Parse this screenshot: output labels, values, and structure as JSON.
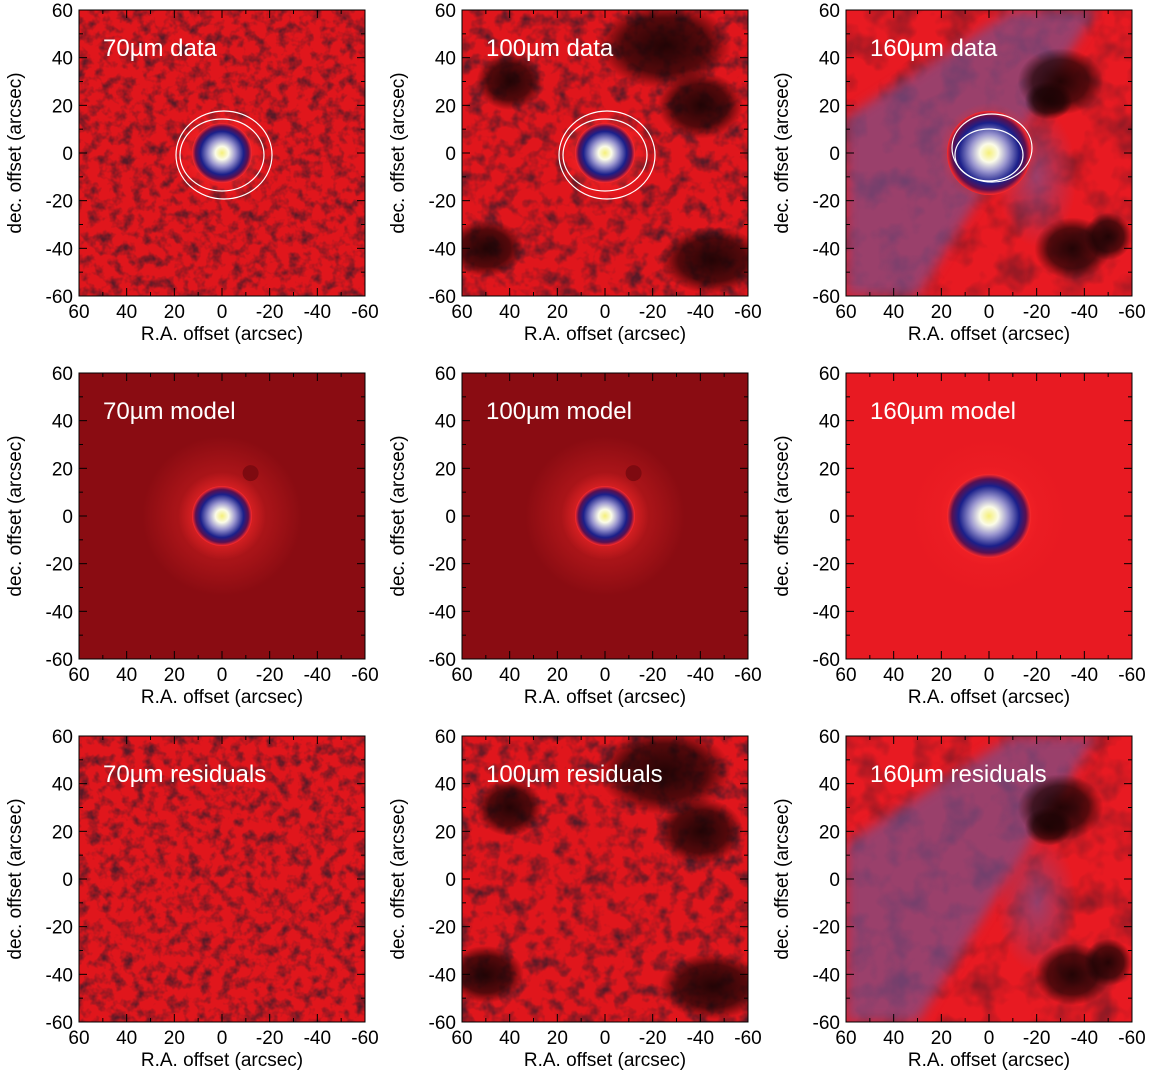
{
  "colors": {
    "background_dark": "#8a0c12",
    "background_mid": "#e0161c",
    "halo_red": "#ff2a2a",
    "core_blue": "#1a1f8a",
    "core_lavender": "#9a96cf",
    "core_yellow": "#f5f07a",
    "dust_dark": "#1a0304",
    "contour": "#ffffff",
    "label_text": "#ffffff"
  },
  "chart_data": [
    {
      "type": "heatmap",
      "title": "70µm data",
      "xlabel": "R.A. offset (arcsec)",
      "ylabel": "dec. offset (arcsec)",
      "xlim": [
        60,
        -60
      ],
      "ylim": [
        -60,
        60
      ],
      "xticks": [
        "60",
        "40",
        "20",
        "0",
        "-20",
        "-40",
        "-60"
      ],
      "yticks": [
        "60",
        "40",
        "20",
        "0",
        "-20",
        "-40",
        "-60"
      ],
      "source_peak_offset": [
        0,
        0
      ],
      "contours": true,
      "style": "data"
    },
    {
      "type": "heatmap",
      "title": "100µm data",
      "xlabel": "R.A. offset (arcsec)",
      "ylabel": "dec. offset (arcsec)",
      "xlim": [
        60,
        -60
      ],
      "ylim": [
        -60,
        60
      ],
      "xticks": [
        "60",
        "40",
        "20",
        "0",
        "-20",
        "-40",
        "-60"
      ],
      "yticks": [
        "60",
        "40",
        "20",
        "0",
        "-20",
        "-40",
        "-60"
      ],
      "source_peak_offset": [
        0,
        0
      ],
      "contours": true,
      "style": "data"
    },
    {
      "type": "heatmap",
      "title": "160µm data",
      "xlabel": "R.A. offset (arcsec)",
      "ylabel": "dec. offset (arcsec)",
      "xlim": [
        60,
        -60
      ],
      "ylim": [
        -60,
        60
      ],
      "xticks": [
        "60",
        "40",
        "20",
        "0",
        "-20",
        "-40",
        "-60"
      ],
      "yticks": [
        "60",
        "40",
        "20",
        "0",
        "-20",
        "-40",
        "-60"
      ],
      "source_peak_offset": [
        0,
        0
      ],
      "contours": true,
      "style": "data160"
    },
    {
      "type": "heatmap",
      "title": "70µm model",
      "xlabel": "R.A. offset (arcsec)",
      "ylabel": "dec. offset (arcsec)",
      "xlim": [
        60,
        -60
      ],
      "ylim": [
        -60,
        60
      ],
      "xticks": [
        "60",
        "40",
        "20",
        "0",
        "-20",
        "-40",
        "-60"
      ],
      "yticks": [
        "60",
        "40",
        "20",
        "0",
        "-20",
        "-40",
        "-60"
      ],
      "source_peak_offset": [
        0,
        0
      ],
      "contours": false,
      "style": "model"
    },
    {
      "type": "heatmap",
      "title": "100µm model",
      "xlabel": "R.A. offset (arcsec)",
      "ylabel": "dec. offset (arcsec)",
      "xlim": [
        60,
        -60
      ],
      "ylim": [
        -60,
        60
      ],
      "xticks": [
        "60",
        "40",
        "20",
        "0",
        "-20",
        "-40",
        "-60"
      ],
      "yticks": [
        "60",
        "40",
        "20",
        "0",
        "-20",
        "-40",
        "-60"
      ],
      "source_peak_offset": [
        0,
        0
      ],
      "contours": false,
      "style": "model"
    },
    {
      "type": "heatmap",
      "title": "160µm model",
      "xlabel": "R.A. offset (arcsec)",
      "ylabel": "dec. offset (arcsec)",
      "xlim": [
        60,
        -60
      ],
      "ylim": [
        -60,
        60
      ],
      "xticks": [
        "60",
        "40",
        "20",
        "0",
        "-20",
        "-40",
        "-60"
      ],
      "yticks": [
        "60",
        "40",
        "20",
        "0",
        "-20",
        "-40",
        "-60"
      ],
      "source_peak_offset": [
        0,
        0
      ],
      "contours": false,
      "style": "model160"
    },
    {
      "type": "heatmap",
      "title": "70µm residuals",
      "xlabel": "R.A. offset (arcsec)",
      "ylabel": "dec. offset (arcsec)",
      "xlim": [
        60,
        -60
      ],
      "ylim": [
        -60,
        60
      ],
      "xticks": [
        "60",
        "40",
        "20",
        "0",
        "-20",
        "-40",
        "-60"
      ],
      "yticks": [
        "60",
        "40",
        "20",
        "0",
        "-20",
        "-40",
        "-60"
      ],
      "source_peak_offset": null,
      "contours": false,
      "style": "residual"
    },
    {
      "type": "heatmap",
      "title": "100µm residuals",
      "xlabel": "R.A. offset (arcsec)",
      "ylabel": "dec. offset (arcsec)",
      "xlim": [
        60,
        -60
      ],
      "ylim": [
        -60,
        60
      ],
      "xticks": [
        "60",
        "40",
        "20",
        "0",
        "-20",
        "-40",
        "-60"
      ],
      "yticks": [
        "60",
        "40",
        "20",
        "0",
        "-20",
        "-40",
        "-60"
      ],
      "source_peak_offset": null,
      "contours": false,
      "style": "residual100"
    },
    {
      "type": "heatmap",
      "title": "160µm residuals",
      "xlabel": "R.A. offset (arcsec)",
      "ylabel": "dec. offset (arcsec)",
      "xlim": [
        60,
        -60
      ],
      "ylim": [
        -60,
        60
      ],
      "xticks": [
        "60",
        "40",
        "20",
        "0",
        "-20",
        "-40",
        "-60"
      ],
      "yticks": [
        "60",
        "40",
        "20",
        "0",
        "-20",
        "-40",
        "-60"
      ],
      "source_peak_offset": null,
      "contours": false,
      "style": "residual160"
    }
  ]
}
